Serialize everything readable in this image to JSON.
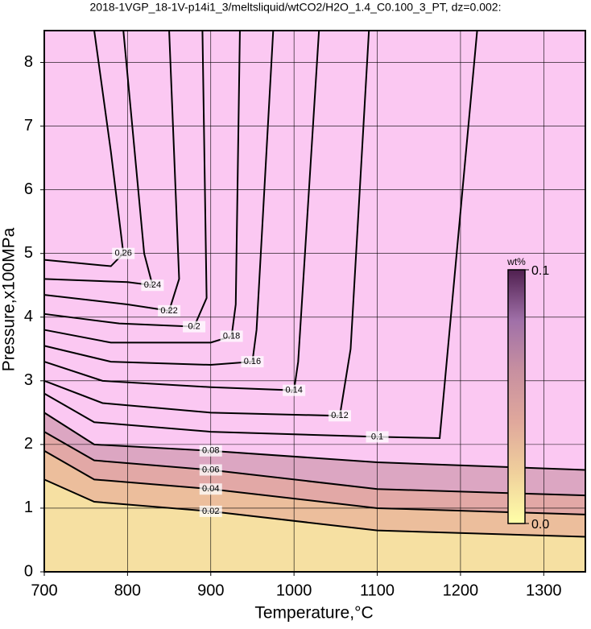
{
  "chart_data": {
    "type": "contour",
    "title": "2018-1VGP_18-1V-p14i1_3/meltsliquid/wtCO2/H2O_1.4_C0.100_3_PT, dz=0.002:",
    "xlabel": "Temperature,°C",
    "ylabel": "Pressure,x100MPa",
    "xlim": [
      700,
      1350
    ],
    "ylim": [
      0,
      8.5
    ],
    "xticks": [
      700,
      800,
      900,
      1000,
      1100,
      1200,
      1300
    ],
    "yticks": [
      0,
      1,
      2,
      3,
      4,
      5,
      6,
      7,
      8
    ],
    "grid": true,
    "background": "#fbc8f2",
    "contours": [
      {
        "level": 0.1,
        "x": [
          700,
          760,
          900,
          1100,
          1175,
          1220
        ],
        "y": [
          2.8,
          2.35,
          2.2,
          2.12,
          2.1,
          8.5
        ]
      },
      {
        "level": 0.08,
        "fill": "#dca6c2",
        "x": [
          700,
          760,
          900,
          1100,
          1350
        ],
        "y": [
          2.5,
          2.0,
          1.9,
          1.72,
          1.6
        ]
      },
      {
        "level": 0.06,
        "fill": "#e2a8a6",
        "x": [
          700,
          760,
          900,
          1100,
          1350
        ],
        "y": [
          2.2,
          1.75,
          1.6,
          1.3,
          1.2
        ]
      },
      {
        "level": 0.04,
        "fill": "#ecbe9c",
        "x": [
          700,
          760,
          900,
          1100,
          1350
        ],
        "y": [
          1.9,
          1.45,
          1.3,
          1.0,
          0.9
        ]
      },
      {
        "level": 0.02,
        "fill": "#f6e0a2",
        "x": [
          700,
          760,
          900,
          1100,
          1350
        ],
        "y": [
          1.45,
          1.1,
          0.95,
          0.65,
          0.55
        ]
      },
      {
        "level": 0.12,
        "x": [
          700,
          770,
          900,
          1055,
          1068,
          1090
        ],
        "y": [
          3.0,
          2.65,
          2.5,
          2.45,
          3.5,
          8.5
        ]
      },
      {
        "level": 0.14,
        "x": [
          700,
          770,
          900,
          1000,
          1005,
          1030
        ],
        "y": [
          3.3,
          3.0,
          2.9,
          2.85,
          3.3,
          8.5
        ]
      },
      {
        "level": 0.16,
        "x": [
          700,
          780,
          900,
          950,
          955,
          975
        ],
        "y": [
          3.55,
          3.3,
          3.25,
          3.3,
          3.8,
          8.5
        ]
      },
      {
        "level": 0.18,
        "x": [
          700,
          780,
          900,
          925,
          930,
          935
        ],
        "y": [
          3.8,
          3.6,
          3.6,
          3.7,
          4.2,
          8.5
        ]
      },
      {
        "level": 0.2,
        "x": [
          700,
          790,
          880,
          895,
          890
        ],
        "y": [
          4.05,
          3.9,
          3.85,
          4.3,
          8.5
        ]
      },
      {
        "level": 0.22,
        "x": [
          700,
          800,
          850,
          862,
          850
        ],
        "y": [
          4.35,
          4.2,
          4.1,
          4.6,
          8.5
        ]
      },
      {
        "level": 0.24,
        "x": [
          700,
          800,
          830,
          820,
          795
        ],
        "y": [
          4.6,
          4.55,
          4.5,
          5.0,
          8.5
        ]
      },
      {
        "level": 0.26,
        "x": [
          700,
          780,
          795,
          780,
          760
        ],
        "y": [
          4.9,
          4.8,
          5.0,
          6.6,
          8.5
        ]
      }
    ],
    "colorbar": {
      "label": "wt%",
      "colors": [
        "#ffffa8",
        "#f0d09c",
        "#e0a89c",
        "#c890a0",
        "#a070a8",
        "#502050"
      ],
      "ticks": [
        {
          "value": 0,
          "label": "0.0"
        },
        0.1
      ]
    }
  }
}
